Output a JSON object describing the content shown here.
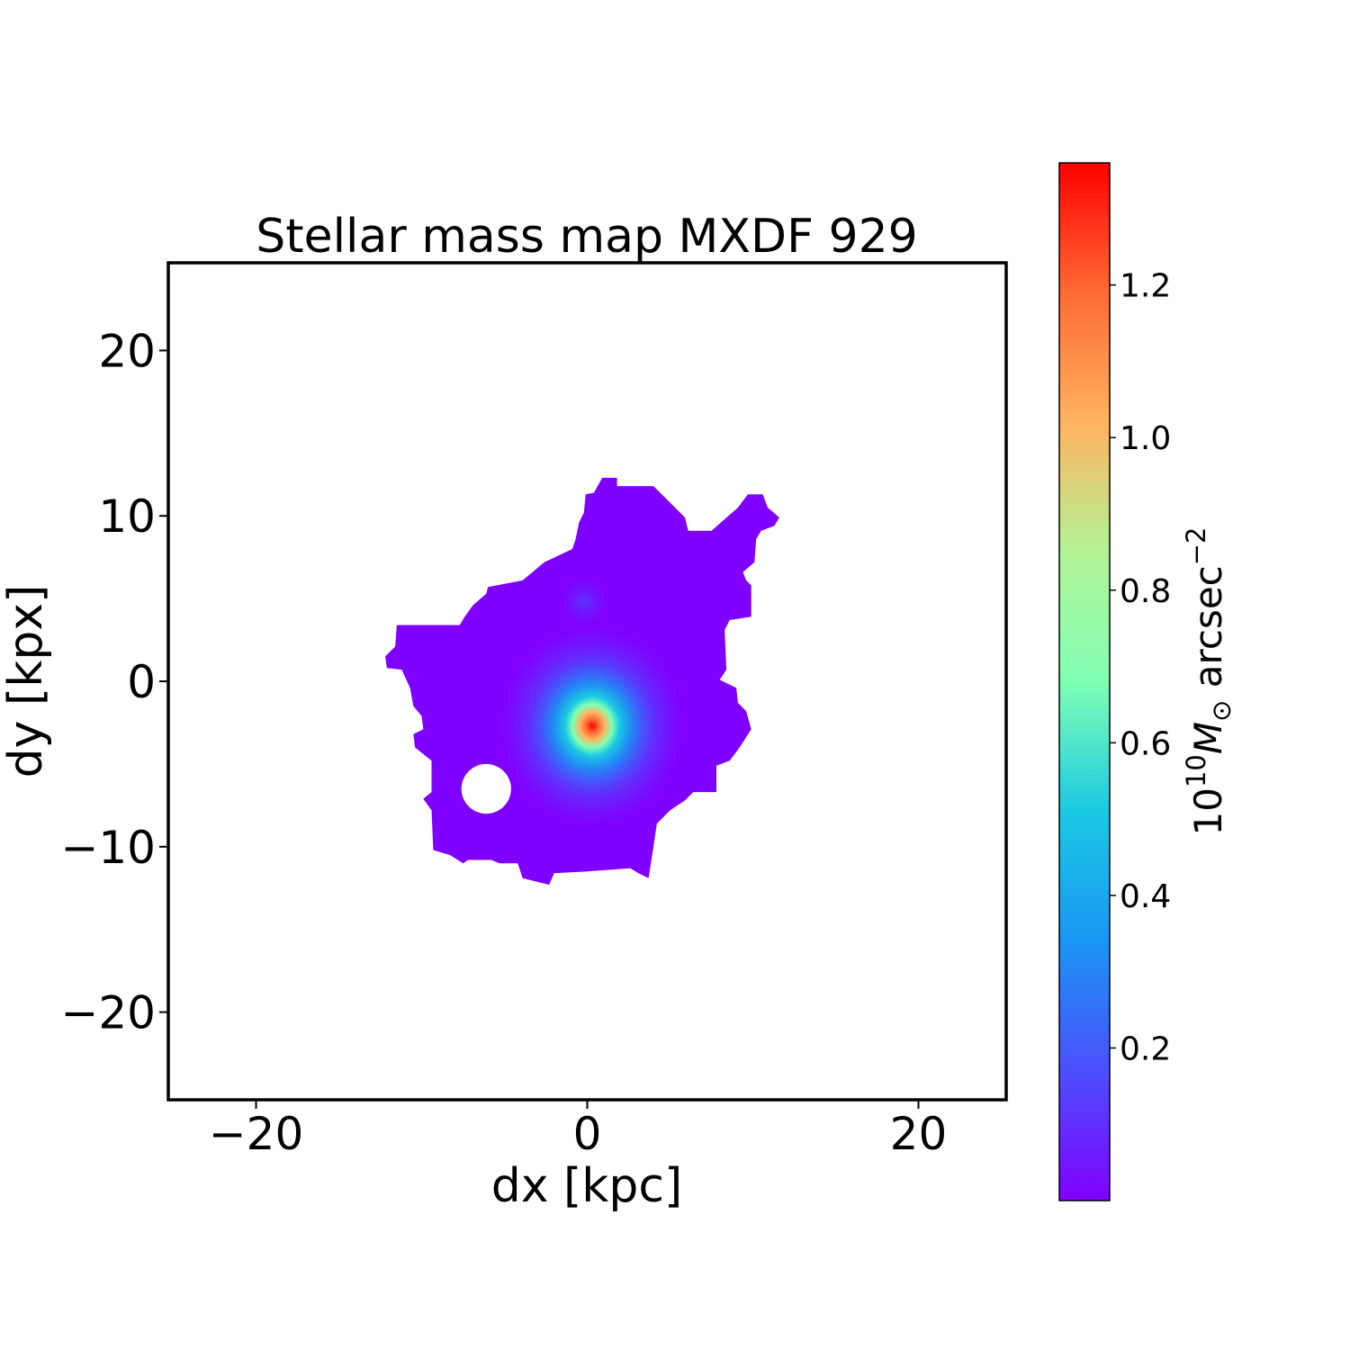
{
  "chart_data": {
    "type": "heatmap",
    "title": "Stellar mass map MXDF 929",
    "xlabel": "dx [kpc]",
    "ylabel": "dy [kpx]",
    "xlim": [
      -25.3,
      25.3
    ],
    "ylim": [
      -25.3,
      25.3
    ],
    "xticks": [
      -20,
      0,
      20
    ],
    "yticks": [
      -20,
      -10,
      0,
      10,
      20
    ],
    "xtick_labels": [
      "−20",
      "0",
      "20"
    ],
    "ytick_labels": [
      "−20",
      "−10",
      "0",
      "10",
      "20"
    ],
    "grid": false,
    "colormap": "rainbow",
    "colormap_stops": [
      "#8000ff",
      "#4c4ffc",
      "#1996f3",
      "#1ac9e3",
      "#80ffb4",
      "#b3f396",
      "#ffb360",
      "#ff6a35",
      "#ff0000"
    ],
    "colorbar": {
      "label_base": "10",
      "label_exp": "10",
      "label_symbol": "M",
      "label_sub": "⊙",
      "label_unit": " arcsec",
      "label_unit_exp": "−2",
      "vmin": 0.0,
      "vmax": 1.36,
      "ticks": [
        0.2,
        0.4,
        0.6,
        0.8,
        1.0,
        1.2
      ],
      "tick_labels": [
        "0.2",
        "0.4",
        "0.6",
        "0.8",
        "1.0",
        "1.2"
      ],
      "position": "right"
    },
    "map": {
      "background_value": 0.0,
      "peak": {
        "dx": 0.3,
        "dy": -2.7,
        "value": 1.36
      },
      "secondary_clump": {
        "dx": -0.2,
        "dy": 4.8,
        "value": 0.12
      },
      "masked_hole": {
        "dx": -6.1,
        "dy": -6.5,
        "radius": 1.5
      },
      "outline_kpc": [
        [
          0.9,
          12.3
        ],
        [
          1.8,
          12.3
        ],
        [
          1.8,
          11.8
        ],
        [
          4.0,
          11.8
        ],
        [
          4.8,
          11.0
        ],
        [
          5.9,
          9.9
        ],
        [
          6.1,
          9.1
        ],
        [
          7.5,
          9.1
        ],
        [
          8.3,
          9.8
        ],
        [
          9.1,
          10.5
        ],
        [
          9.7,
          11.3
        ],
        [
          10.6,
          11.3
        ],
        [
          10.9,
          10.5
        ],
        [
          11.6,
          9.9
        ],
        [
          11.3,
          9.4
        ],
        [
          10.5,
          9.1
        ],
        [
          10.2,
          8.6
        ],
        [
          10.1,
          7.2
        ],
        [
          9.4,
          6.6
        ],
        [
          9.6,
          6.1
        ],
        [
          9.9,
          5.8
        ],
        [
          9.9,
          3.9
        ],
        [
          8.6,
          3.7
        ],
        [
          8.3,
          3.1
        ],
        [
          8.4,
          0.7
        ],
        [
          8.0,
          0.1
        ],
        [
          9.0,
          -0.4
        ],
        [
          9.1,
          -1.3
        ],
        [
          9.6,
          -1.8
        ],
        [
          9.9,
          -2.9
        ],
        [
          9.2,
          -4.0
        ],
        [
          8.6,
          -4.8
        ],
        [
          7.8,
          -5.1
        ],
        [
          7.8,
          -6.7
        ],
        [
          6.4,
          -6.7
        ],
        [
          5.9,
          -7.2
        ],
        [
          5.0,
          -7.8
        ],
        [
          4.2,
          -8.6
        ],
        [
          4.0,
          -10.0
        ],
        [
          3.7,
          -11.9
        ],
        [
          3.1,
          -11.6
        ],
        [
          2.6,
          -11.3
        ],
        [
          -0.1,
          -11.5
        ],
        [
          -2.0,
          -11.6
        ],
        [
          -2.3,
          -12.3
        ],
        [
          -3.9,
          -11.9
        ],
        [
          -4.2,
          -11.0
        ],
        [
          -5.3,
          -11.0
        ],
        [
          -5.8,
          -10.8
        ],
        [
          -7.2,
          -10.8
        ],
        [
          -7.5,
          -11.0
        ],
        [
          -8.3,
          -10.5
        ],
        [
          -9.3,
          -10.2
        ],
        [
          -9.4,
          -7.8
        ],
        [
          -9.9,
          -7.1
        ],
        [
          -9.4,
          -6.7
        ],
        [
          -9.4,
          -4.8
        ],
        [
          -10.4,
          -4.0
        ],
        [
          -10.5,
          -3.2
        ],
        [
          -9.9,
          -2.9
        ],
        [
          -10.0,
          -2.1
        ],
        [
          -10.5,
          -1.5
        ],
        [
          -10.7,
          -0.4
        ],
        [
          -11.2,
          0.7
        ],
        [
          -12.1,
          0.8
        ],
        [
          -12.2,
          1.5
        ],
        [
          -11.6,
          2.1
        ],
        [
          -11.5,
          3.4
        ],
        [
          -7.7,
          3.4
        ],
        [
          -7.4,
          3.9
        ],
        [
          -6.9,
          4.6
        ],
        [
          -6.1,
          5.3
        ],
        [
          -6.0,
          5.7
        ],
        [
          -3.9,
          6.1
        ],
        [
          -2.6,
          7.2
        ],
        [
          -0.9,
          8.0
        ],
        [
          -0.7,
          8.6
        ],
        [
          -0.5,
          9.6
        ],
        [
          -0.2,
          10.2
        ],
        [
          -0.1,
          11.3
        ],
        [
          0.4,
          11.4
        ]
      ]
    }
  }
}
